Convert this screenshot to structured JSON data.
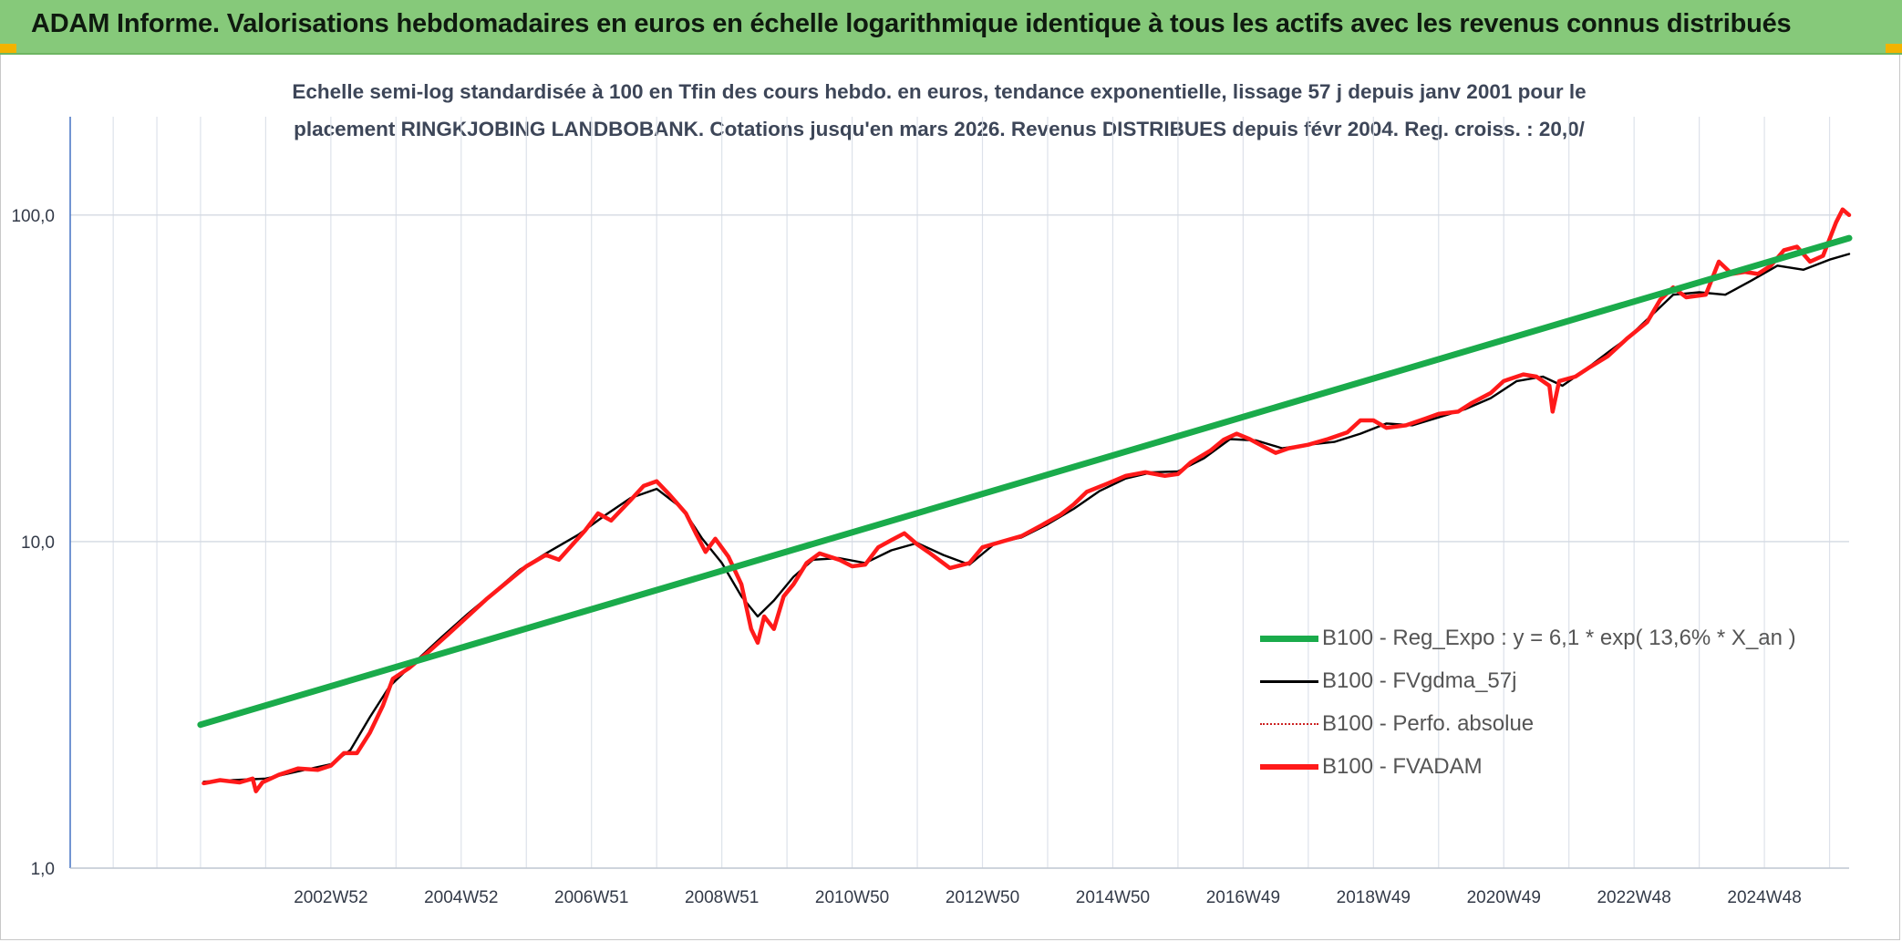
{
  "header": {
    "title": "ADAM Informe. Valorisations hebdomadaires en euros en échelle logarithmique identique à tous les actifs avec les revenus connus distribués"
  },
  "subtitle": {
    "line1": "Echelle semi-log standardisée à 100 en Tfin des cours hebdo. en euros, tendance exponentielle, lissage 57 j depuis janv 2001 pour le",
    "line2": "placement RINGKJOBING LANDBOBANK. Cotations jusqu'en mars 2026. Revenus DISTRIBUES depuis févr 2004. Reg. croiss. : 20,0/"
  },
  "colors": {
    "accent_header": "#86c97a",
    "trend": "#1aab4b",
    "fvadam": "#ff1a1a",
    "fvgdma": "#000000",
    "perfo": "#cc2222"
  },
  "chart_data": {
    "type": "line",
    "y_scale": "log",
    "ylim": [
      1,
      200
    ],
    "y_ticks": [
      {
        "value": 1,
        "label": "1,0"
      },
      {
        "value": 10,
        "label": "10,0"
      },
      {
        "value": 100,
        "label": "100,0"
      }
    ],
    "x_range": [
      1999.0,
      2026.3
    ],
    "x_ticks": [
      {
        "x": 2003.0,
        "label": "2002W52"
      },
      {
        "x": 2005.0,
        "label": "2004W52"
      },
      {
        "x": 2007.0,
        "label": "2006W51"
      },
      {
        "x": 2009.0,
        "label": "2008W51"
      },
      {
        "x": 2011.0,
        "label": "2010W50"
      },
      {
        "x": 2013.0,
        "label": "2012W50"
      },
      {
        "x": 2015.0,
        "label": "2014W50"
      },
      {
        "x": 2017.0,
        "label": "2016W49"
      },
      {
        "x": 2019.0,
        "label": "2018W49"
      },
      {
        "x": 2021.0,
        "label": "2020W49"
      },
      {
        "x": 2023.0,
        "label": "2022W48"
      },
      {
        "x": 2025.0,
        "label": "2024W48"
      }
    ],
    "grid": true,
    "legend_position": "bottom-right",
    "series": [
      {
        "name": "B100 - Reg_Expo : y = 6,1 * exp( 13,6% *  X_an )",
        "color": "#1aab4b",
        "style": "thick",
        "points": [
          [
            2001.0,
            2.75
          ],
          [
            2026.3,
            85.0
          ]
        ]
      },
      {
        "name": "B100 - FVgdma_57j",
        "color": "#000000",
        "style": "thin",
        "points": [
          [
            2001.05,
            1.84
          ],
          [
            2001.5,
            1.86
          ],
          [
            2002.0,
            1.88
          ],
          [
            2002.5,
            1.98
          ],
          [
            2003.0,
            2.08
          ],
          [
            2003.3,
            2.3
          ],
          [
            2003.6,
            2.9
          ],
          [
            2003.9,
            3.6
          ],
          [
            2004.3,
            4.3
          ],
          [
            2004.7,
            5.1
          ],
          [
            2005.1,
            6.0
          ],
          [
            2005.5,
            7.0
          ],
          [
            2005.9,
            8.2
          ],
          [
            2006.3,
            9.2
          ],
          [
            2006.8,
            10.5
          ],
          [
            2007.2,
            12.0
          ],
          [
            2007.6,
            13.6
          ],
          [
            2008.0,
            14.5
          ],
          [
            2008.4,
            12.6
          ],
          [
            2008.7,
            10.2
          ],
          [
            2009.0,
            8.6
          ],
          [
            2009.3,
            6.8
          ],
          [
            2009.55,
            5.9
          ],
          [
            2009.8,
            6.6
          ],
          [
            2010.1,
            7.8
          ],
          [
            2010.4,
            8.8
          ],
          [
            2010.8,
            8.9
          ],
          [
            2011.2,
            8.6
          ],
          [
            2011.6,
            9.4
          ],
          [
            2012.0,
            9.9
          ],
          [
            2012.4,
            9.1
          ],
          [
            2012.8,
            8.5
          ],
          [
            2013.2,
            9.9
          ],
          [
            2013.6,
            10.3
          ],
          [
            2014.0,
            11.3
          ],
          [
            2014.4,
            12.6
          ],
          [
            2014.8,
            14.3
          ],
          [
            2015.2,
            15.6
          ],
          [
            2015.6,
            16.3
          ],
          [
            2016.0,
            16.4
          ],
          [
            2016.4,
            18.0
          ],
          [
            2016.8,
            20.6
          ],
          [
            2017.2,
            20.4
          ],
          [
            2017.6,
            19.3
          ],
          [
            2018.0,
            19.8
          ],
          [
            2018.4,
            20.2
          ],
          [
            2018.8,
            21.4
          ],
          [
            2019.2,
            23.0
          ],
          [
            2019.6,
            22.7
          ],
          [
            2020.0,
            24.0
          ],
          [
            2020.4,
            25.4
          ],
          [
            2020.8,
            27.5
          ],
          [
            2021.2,
            31.0
          ],
          [
            2021.6,
            32.0
          ],
          [
            2021.9,
            30.0
          ],
          [
            2022.2,
            33.0
          ],
          [
            2022.6,
            38.0
          ],
          [
            2022.9,
            42.0
          ],
          [
            2023.3,
            50.0
          ],
          [
            2023.6,
            57.0
          ],
          [
            2024.0,
            58.0
          ],
          [
            2024.4,
            57.0
          ],
          [
            2024.8,
            63.0
          ],
          [
            2025.2,
            70.0
          ],
          [
            2025.6,
            68.0
          ],
          [
            2026.0,
            73.0
          ],
          [
            2026.3,
            76.0
          ]
        ]
      },
      {
        "name": "B100 - Perfo. absolue",
        "color": "#cc2222",
        "style": "dotted",
        "points": []
      },
      {
        "name": "B100 - FVADAM",
        "color": "#ff1a1a",
        "style": "medium",
        "points": [
          [
            2001.05,
            1.82
          ],
          [
            2001.3,
            1.86
          ],
          [
            2001.6,
            1.83
          ],
          [
            2001.8,
            1.88
          ],
          [
            2001.85,
            1.72
          ],
          [
            2001.95,
            1.83
          ],
          [
            2002.2,
            1.93
          ],
          [
            2002.5,
            2.02
          ],
          [
            2002.8,
            2.0
          ],
          [
            2003.0,
            2.06
          ],
          [
            2003.2,
            2.25
          ],
          [
            2003.4,
            2.25
          ],
          [
            2003.6,
            2.6
          ],
          [
            2003.8,
            3.15
          ],
          [
            2003.95,
            3.8
          ],
          [
            2004.2,
            4.1
          ],
          [
            2004.5,
            4.6
          ],
          [
            2004.8,
            5.2
          ],
          [
            2005.1,
            5.9
          ],
          [
            2005.4,
            6.7
          ],
          [
            2005.7,
            7.5
          ],
          [
            2006.0,
            8.4
          ],
          [
            2006.3,
            9.1
          ],
          [
            2006.5,
            8.8
          ],
          [
            2006.9,
            10.8
          ],
          [
            2007.1,
            12.2
          ],
          [
            2007.3,
            11.6
          ],
          [
            2007.6,
            13.4
          ],
          [
            2007.8,
            14.8
          ],
          [
            2008.0,
            15.3
          ],
          [
            2008.2,
            13.9
          ],
          [
            2008.45,
            12.2
          ],
          [
            2008.6,
            10.6
          ],
          [
            2008.75,
            9.3
          ],
          [
            2008.9,
            10.2
          ],
          [
            2009.1,
            9.0
          ],
          [
            2009.3,
            7.4
          ],
          [
            2009.45,
            5.4
          ],
          [
            2009.55,
            4.9
          ],
          [
            2009.65,
            5.9
          ],
          [
            2009.8,
            5.4
          ],
          [
            2009.95,
            6.8
          ],
          [
            2010.1,
            7.4
          ],
          [
            2010.3,
            8.6
          ],
          [
            2010.5,
            9.2
          ],
          [
            2010.8,
            8.8
          ],
          [
            2011.0,
            8.4
          ],
          [
            2011.2,
            8.5
          ],
          [
            2011.4,
            9.6
          ],
          [
            2011.6,
            10.1
          ],
          [
            2011.8,
            10.6
          ],
          [
            2012.0,
            9.8
          ],
          [
            2012.2,
            9.2
          ],
          [
            2012.5,
            8.3
          ],
          [
            2012.8,
            8.6
          ],
          [
            2013.0,
            9.6
          ],
          [
            2013.3,
            10.0
          ],
          [
            2013.6,
            10.4
          ],
          [
            2013.9,
            11.2
          ],
          [
            2014.2,
            12.1
          ],
          [
            2014.4,
            13.0
          ],
          [
            2014.6,
            14.2
          ],
          [
            2014.9,
            15.0
          ],
          [
            2015.2,
            15.9
          ],
          [
            2015.5,
            16.3
          ],
          [
            2015.8,
            15.9
          ],
          [
            2016.0,
            16.1
          ],
          [
            2016.2,
            17.5
          ],
          [
            2016.5,
            19.0
          ],
          [
            2016.7,
            20.5
          ],
          [
            2016.9,
            21.4
          ],
          [
            2017.1,
            20.6
          ],
          [
            2017.3,
            19.6
          ],
          [
            2017.5,
            18.7
          ],
          [
            2017.7,
            19.3
          ],
          [
            2018.0,
            19.8
          ],
          [
            2018.3,
            20.6
          ],
          [
            2018.6,
            21.6
          ],
          [
            2018.8,
            23.5
          ],
          [
            2019.0,
            23.5
          ],
          [
            2019.2,
            22.3
          ],
          [
            2019.5,
            22.7
          ],
          [
            2019.8,
            23.8
          ],
          [
            2020.0,
            24.6
          ],
          [
            2020.3,
            25.0
          ],
          [
            2020.5,
            26.5
          ],
          [
            2020.8,
            28.5
          ],
          [
            2021.0,
            31.0
          ],
          [
            2021.3,
            32.5
          ],
          [
            2021.5,
            32.0
          ],
          [
            2021.7,
            30.0
          ],
          [
            2021.75,
            25.0
          ],
          [
            2021.85,
            31.0
          ],
          [
            2022.1,
            32.0
          ],
          [
            2022.3,
            34.0
          ],
          [
            2022.6,
            37.0
          ],
          [
            2022.9,
            42.0
          ],
          [
            2023.2,
            47.0
          ],
          [
            2023.4,
            55.0
          ],
          [
            2023.6,
            60.0
          ],
          [
            2023.8,
            56.0
          ],
          [
            2024.1,
            57.0
          ],
          [
            2024.3,
            72.0
          ],
          [
            2024.5,
            66.0
          ],
          [
            2024.7,
            67.0
          ],
          [
            2024.9,
            66.0
          ],
          [
            2025.1,
            70.0
          ],
          [
            2025.3,
            78.0
          ],
          [
            2025.5,
            80.0
          ],
          [
            2025.7,
            72.0
          ],
          [
            2025.9,
            75.0
          ],
          [
            2026.1,
            95.0
          ],
          [
            2026.2,
            104.0
          ],
          [
            2026.3,
            100.0
          ]
        ]
      }
    ]
  }
}
